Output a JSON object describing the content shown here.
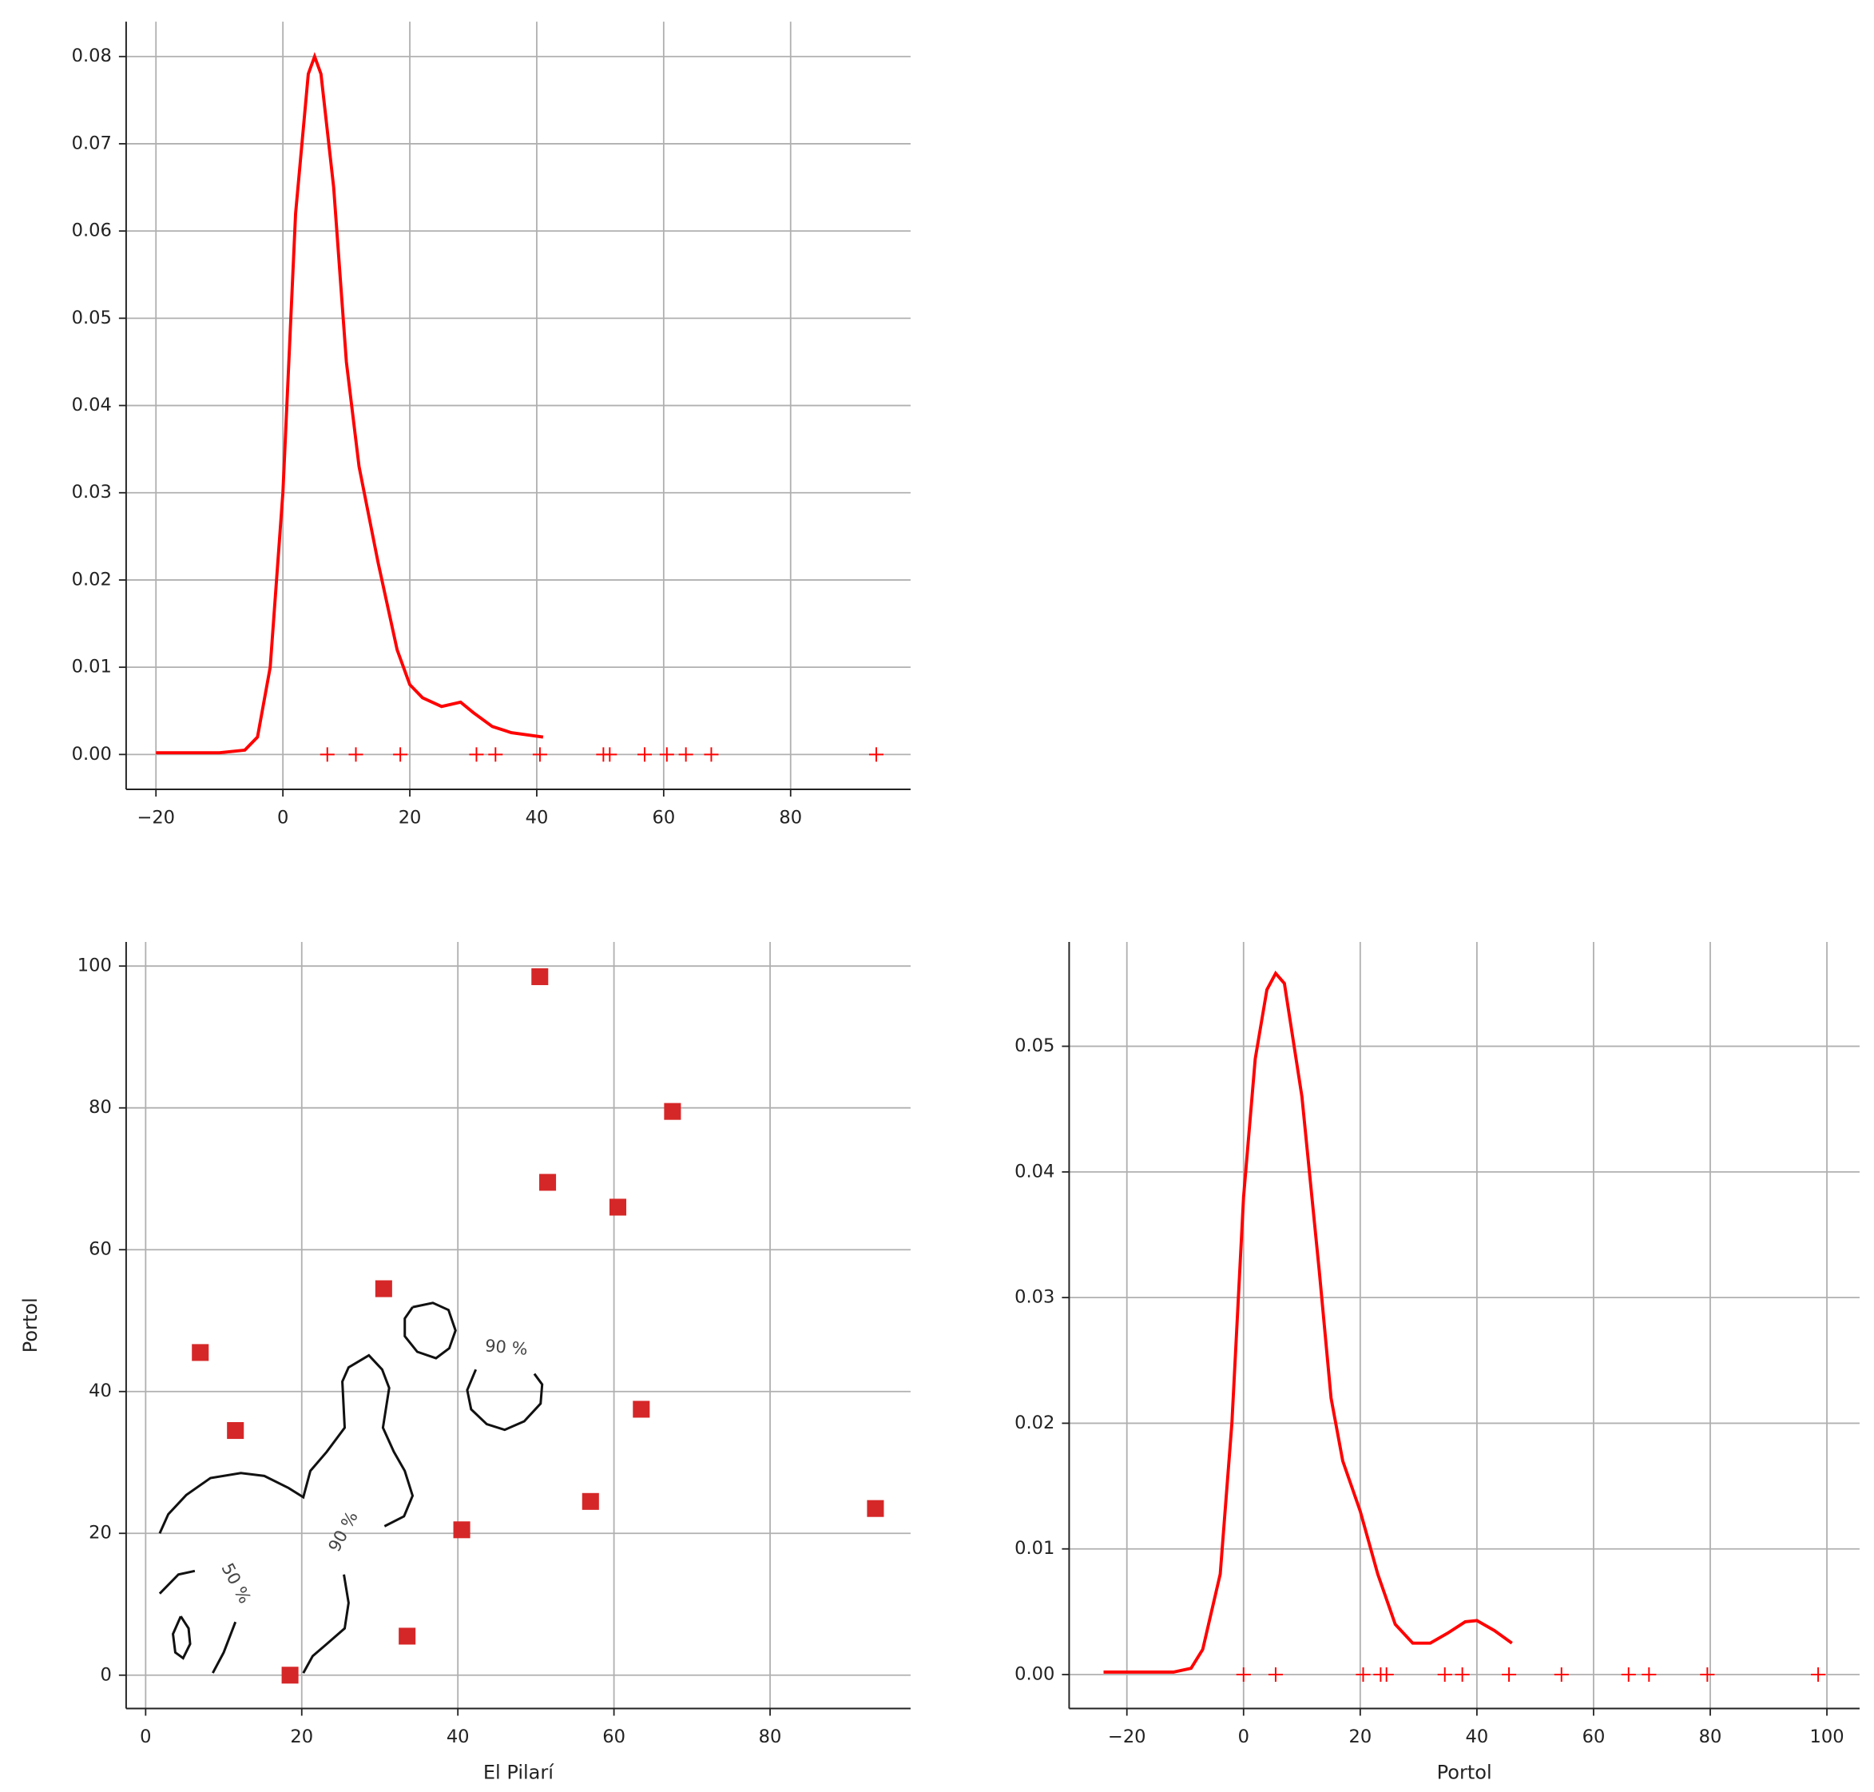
{
  "chart_data": [
    {
      "type": "kde",
      "color": "#ff0000",
      "grid": true,
      "x": [
        -20,
        -10,
        -6,
        -4,
        -2,
        0,
        2,
        4,
        5,
        6,
        8,
        10,
        12,
        15,
        18,
        20,
        22,
        25,
        28,
        30,
        33,
        36,
        41
      ],
      "y": [
        0.0002,
        0.0002,
        0.0005,
        0.002,
        0.01,
        0.03,
        0.062,
        0.078,
        0.08,
        0.078,
        0.065,
        0.045,
        0.033,
        0.022,
        0.012,
        0.008,
        0.0065,
        0.0055,
        0.006,
        0.0048,
        0.0032,
        0.0025,
        0.002
      ],
      "rug": [
        7,
        11.5,
        18.5,
        30.5,
        33.5,
        40.5,
        50.5,
        51.5,
        57,
        60.5,
        63.5,
        67.5,
        93.5
      ],
      "xlim": [
        -24.7,
        98.9
      ],
      "ylim": [
        -0.004,
        0.084
      ],
      "xticks": [
        {
          "value": -20,
          "label": "−20"
        },
        0,
        20,
        40,
        60,
        80
      ],
      "yticks": [
        {
          "value": 0,
          "label": "0.00"
        },
        {
          "value": 0.01,
          "label": "0.01"
        },
        {
          "value": 0.02,
          "label": "0.02"
        },
        {
          "value": 0.03,
          "label": "0.03"
        },
        {
          "value": 0.04,
          "label": "0.04"
        },
        {
          "value": 0.05,
          "label": "0.05"
        },
        {
          "value": 0.06,
          "label": "0.06"
        },
        {
          "value": 0.07,
          "label": "0.07"
        },
        {
          "value": 0.08,
          "label": "0.08"
        }
      ]
    },
    {
      "type": "scatter",
      "color": "#d62728",
      "grid": true,
      "xlabel": "El Pilarí",
      "ylabel": "Portol",
      "x": [
        18.5,
        33.5,
        40.5,
        57,
        93.5,
        11.5,
        63.5,
        7,
        30.5,
        60.5,
        51.5,
        67.5,
        50.5
      ],
      "y": [
        0,
        5.5,
        20.5,
        24.5,
        23.5,
        34.5,
        37.5,
        45.5,
        54.5,
        66,
        69.5,
        79.5,
        98.5
      ],
      "contour_color": "#111111",
      "contours": [
        {
          "x": [
            1.8,
            2.9,
            5.2,
            8.3,
            12.2,
            15.2,
            18.3,
            20.2,
            21.1,
            23.2,
            25.5,
            25.2,
            26,
            28.6,
            30.3,
            31.2,
            30.4,
            31.8,
            33.2,
            34.2,
            33.1,
            30.6
          ],
          "y": [
            20,
            22.7,
            25.4,
            27.8,
            28.5,
            28.1,
            26.4,
            25.1,
            28.8,
            31.5,
            34.9,
            41.4,
            43.4,
            45.1,
            43.1,
            40.5,
            34.9,
            31.5,
            28.8,
            25.3,
            22.4,
            21
          ]
        },
        {
          "x": [
            34.2,
            36.8,
            38.8,
            39.7,
            38.9,
            37.2,
            34.8,
            33.2,
            33.2,
            34.2
          ],
          "y": [
            51.9,
            52.5,
            51.5,
            48.6,
            46.1,
            44.7,
            45.6,
            47.8,
            50.3,
            51.9
          ]
        },
        {
          "x": [
            42.3,
            41.2,
            41.7,
            43.7,
            46,
            48.5,
            50.6,
            50.8,
            49.8
          ],
          "y": [
            43.1,
            40.2,
            37.5,
            35.4,
            34.6,
            35.8,
            38.3,
            41,
            42.5
          ]
        },
        {
          "x": [
            25.4,
            26,
            25.5,
            23.2,
            21.4,
            20.2
          ],
          "y": [
            14.2,
            10.2,
            6.6,
            4.4,
            2.7,
            0.3
          ]
        },
        {
          "x": [
            1.8,
            4.2,
            6.3
          ],
          "y": [
            11.5,
            14.2,
            14.7
          ]
        },
        {
          "x": [
            4.5,
            5.5,
            5.7,
            4.8,
            3.8,
            3.5,
            4.5
          ],
          "y": [
            8.3,
            6.6,
            4.4,
            2.4,
            3.2,
            5.8,
            8.3
          ]
        },
        {
          "x": [
            11.5,
            10,
            8.6
          ],
          "y": [
            7.5,
            3.2,
            0.3
          ]
        }
      ],
      "contour_labels": [
        {
          "text": "90 %",
          "x": 46.2,
          "y": 46.1
        },
        {
          "text": "90 %",
          "x": 25.4,
          "y": 20.2
        },
        {
          "text": "50 %",
          "x": 11.5,
          "y": 12.9
        }
      ],
      "xlim": [
        -2.5,
        98
      ],
      "ylim": [
        -4.7,
        103.4
      ],
      "xticks": [
        0,
        20,
        40,
        60,
        80
      ],
      "yticks": [
        0,
        20,
        40,
        60,
        80,
        100
      ]
    },
    {
      "type": "kde",
      "color": "#ff0000",
      "grid": true,
      "xlabel": "Portol",
      "x": [
        -24,
        -12,
        -9,
        -7,
        -4,
        -2,
        0,
        2,
        4,
        5.5,
        7,
        10,
        13,
        15,
        17,
        20,
        23,
        26,
        29,
        32,
        35,
        38,
        40,
        43,
        46
      ],
      "y": [
        0.0002,
        0.0002,
        0.0005,
        0.002,
        0.008,
        0.02,
        0.038,
        0.049,
        0.0545,
        0.0558,
        0.055,
        0.046,
        0.032,
        0.022,
        0.017,
        0.013,
        0.008,
        0.004,
        0.0025,
        0.0025,
        0.0033,
        0.0042,
        0.0043,
        0.0035,
        0.0025
      ],
      "rug": [
        0,
        5.5,
        20.5,
        23.5,
        24.5,
        34.5,
        37.5,
        45.5,
        54.5,
        66,
        69.5,
        79.5,
        98.5
      ],
      "xlim": [
        -29.9,
        105.6
      ],
      "ylim": [
        -0.0027,
        0.0583
      ],
      "xticks": [
        {
          "value": -20,
          "label": "−20"
        },
        0,
        20,
        40,
        60,
        80,
        100
      ],
      "yticks": [
        {
          "value": 0,
          "label": "0.00"
        },
        {
          "value": 0.01,
          "label": "0.01"
        },
        {
          "value": 0.02,
          "label": "0.02"
        },
        {
          "value": 0.03,
          "label": "0.03"
        },
        {
          "value": 0.04,
          "label": "0.04"
        },
        {
          "value": 0.05,
          "label": "0.05"
        }
      ]
    }
  ]
}
